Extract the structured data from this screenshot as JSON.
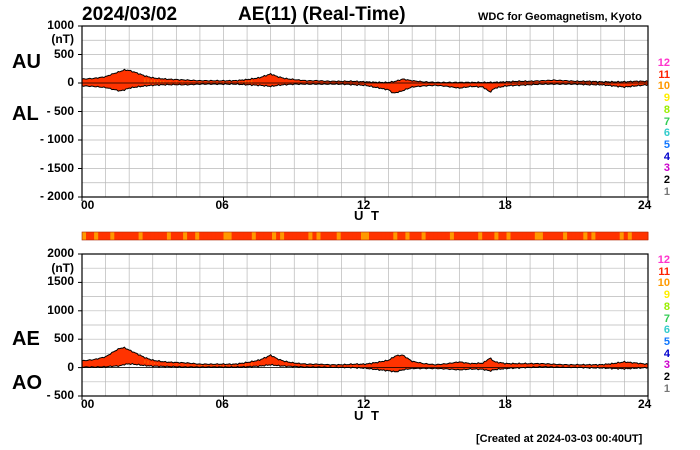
{
  "header": {
    "date": "2024/03/02",
    "title": "AE(11) (Real-Time)",
    "credit": "WDC for Geomagnetism, Kyoto"
  },
  "footer": {
    "created": "[Created at 2024-03-03 00:40UT]"
  },
  "scale_colors": [
    "#ff33cc",
    "#ff2200",
    "#ff9900",
    "#ffee00",
    "#99ee00",
    "#33cc55",
    "#33cccc",
    "#1177ff",
    "#0000cc",
    "#cc00cc",
    "#000000",
    "#777777",
    "#bbbbbb"
  ],
  "chart_data": [
    {
      "type": "area",
      "panel": "AU/AL",
      "label_top": "AU",
      "label_bottom": "AL",
      "unit": "(nT)",
      "xlabel": "U T",
      "ylim": [
        -2000,
        1000
      ],
      "xlim": [
        0,
        24
      ],
      "xticks": [
        0,
        6,
        12,
        18,
        24
      ],
      "xtick_labels": [
        "00",
        "06",
        "12",
        "18",
        "24"
      ],
      "yticks": [
        1000,
        500,
        0,
        -500,
        -1000,
        -1500,
        -2000
      ],
      "ytick_labels": [
        "1000",
        "500",
        "0",
        "- 500",
        "- 1000",
        "- 1500",
        "- 2000"
      ],
      "station_count_labels": [
        "12",
        "11",
        "10",
        "9",
        "8",
        "7",
        "6",
        "5",
        "4",
        "3",
        "2",
        "1"
      ],
      "grid": true,
      "series": [
        {
          "name": "AU",
          "x": [
            0,
            0.5,
            1,
            1.3,
            1.6,
            1.8,
            2,
            2.3,
            2.7,
            3,
            3.5,
            4,
            4.5,
            5,
            5.5,
            6,
            6.5,
            7,
            7.5,
            7.8,
            8,
            8.3,
            8.6,
            9,
            9.5,
            10,
            10.5,
            11,
            11.5,
            12,
            12.5,
            13,
            13.3,
            13.6,
            14,
            14.5,
            15,
            15.5,
            16,
            16.5,
            17,
            17.5,
            18,
            18.5,
            19,
            19.5,
            20,
            20.5,
            21,
            21.5,
            22,
            22.5,
            23,
            23.5,
            24
          ],
          "y": [
            70,
            80,
            110,
            160,
            200,
            230,
            220,
            180,
            120,
            90,
            70,
            60,
            50,
            40,
            40,
            40,
            40,
            60,
            90,
            130,
            160,
            110,
            80,
            60,
            40,
            40,
            30,
            30,
            30,
            20,
            10,
            10,
            30,
            70,
            40,
            20,
            10,
            10,
            10,
            10,
            10,
            10,
            20,
            30,
            30,
            40,
            50,
            40,
            30,
            30,
            20,
            20,
            20,
            30,
            30
          ]
        },
        {
          "name": "AL",
          "x": [
            0,
            0.5,
            1,
            1.3,
            1.6,
            1.8,
            2,
            2.3,
            2.7,
            3,
            3.5,
            4,
            4.5,
            5,
            5.5,
            6,
            6.5,
            7,
            7.5,
            7.8,
            8,
            8.3,
            8.6,
            9,
            9.5,
            10,
            10.5,
            11,
            11.5,
            12,
            12.5,
            13,
            13.2,
            13.5,
            14,
            14.5,
            15,
            15.5,
            16,
            16.5,
            17,
            17.3,
            17.5,
            18,
            18.5,
            19,
            19.5,
            20,
            20.5,
            21,
            21.5,
            22,
            22.5,
            23,
            23.5,
            24
          ],
          "y": [
            -50,
            -60,
            -80,
            -110,
            -140,
            -120,
            -90,
            -70,
            -50,
            -40,
            -30,
            -30,
            -30,
            -20,
            -20,
            -20,
            -20,
            -30,
            -40,
            -50,
            -60,
            -40,
            -30,
            -20,
            -20,
            -20,
            -20,
            -20,
            -30,
            -40,
            -80,
            -120,
            -180,
            -150,
            -70,
            -50,
            -40,
            -60,
            -90,
            -60,
            -70,
            -160,
            -90,
            -50,
            -40,
            -30,
            -20,
            -20,
            -20,
            -20,
            -30,
            -30,
            -50,
            -70,
            -50,
            -30
          ]
        }
      ]
    },
    {
      "type": "area",
      "panel": "AE/AO",
      "label_top": "AE",
      "label_bottom": "AO",
      "unit": "(nT)",
      "xlabel": "U T",
      "ylim": [
        -500,
        2000
      ],
      "xlim": [
        0,
        24
      ],
      "xticks": [
        0,
        6,
        12,
        18,
        24
      ],
      "xtick_labels": [
        "00",
        "06",
        "12",
        "18",
        "24"
      ],
      "yticks": [
        2000,
        1500,
        1000,
        500,
        0,
        -500
      ],
      "ytick_labels": [
        "2000",
        "1500",
        "1000",
        "500",
        "0",
        "- 500"
      ],
      "station_count_labels": [
        "12",
        "11",
        "10",
        "9",
        "8",
        "7",
        "6",
        "5",
        "4",
        "3",
        "2",
        "1"
      ],
      "grid": true,
      "series": [
        {
          "name": "AE",
          "x": [
            0,
            0.5,
            1,
            1.3,
            1.6,
            1.8,
            2,
            2.3,
            2.7,
            3,
            3.5,
            4,
            4.5,
            5,
            5.5,
            6,
            6.5,
            7,
            7.5,
            7.8,
            8,
            8.3,
            8.6,
            9,
            9.5,
            10,
            10.5,
            11,
            11.5,
            12,
            12.5,
            13,
            13.3,
            13.6,
            14,
            14.5,
            15,
            15.5,
            16,
            16.5,
            17,
            17.3,
            17.5,
            18,
            18.5,
            19,
            19.5,
            20,
            20.5,
            21,
            21.5,
            22,
            22.5,
            23,
            23.5,
            24
          ],
          "y": [
            120,
            140,
            190,
            270,
            340,
            350,
            310,
            250,
            170,
            130,
            100,
            90,
            80,
            60,
            60,
            60,
            60,
            90,
            130,
            180,
            220,
            150,
            110,
            80,
            60,
            60,
            50,
            50,
            60,
            60,
            90,
            130,
            210,
            220,
            110,
            70,
            50,
            70,
            100,
            70,
            80,
            170,
            100,
            70,
            70,
            70,
            70,
            60,
            50,
            50,
            50,
            50,
            70,
            100,
            80,
            60
          ]
        },
        {
          "name": "AO",
          "x": [
            0,
            0.5,
            1,
            1.3,
            1.6,
            1.8,
            2,
            2.3,
            2.7,
            3,
            3.5,
            4,
            4.5,
            5,
            5.5,
            6,
            6.5,
            7,
            7.5,
            7.8,
            8,
            8.3,
            8.6,
            9,
            9.5,
            10,
            10.5,
            11,
            11.5,
            12,
            12.5,
            13,
            13.3,
            13.6,
            14,
            14.5,
            15,
            15.5,
            16,
            16.5,
            17,
            17.3,
            17.5,
            18,
            18.5,
            19,
            19.5,
            20,
            20.5,
            21,
            21.5,
            22,
            22.5,
            23,
            23.5,
            24
          ],
          "y": [
            10,
            10,
            15,
            25,
            30,
            55,
            65,
            55,
            35,
            25,
            20,
            15,
            10,
            10,
            10,
            10,
            10,
            15,
            25,
            40,
            50,
            35,
            25,
            20,
            10,
            10,
            5,
            5,
            0,
            -10,
            -35,
            -55,
            -75,
            -40,
            -15,
            -15,
            -15,
            -25,
            -40,
            -25,
            -30,
            -60,
            -35,
            -15,
            -5,
            5,
            15,
            10,
            5,
            5,
            -5,
            -5,
            -15,
            -20,
            -10,
            0
          ]
        }
      ]
    }
  ]
}
